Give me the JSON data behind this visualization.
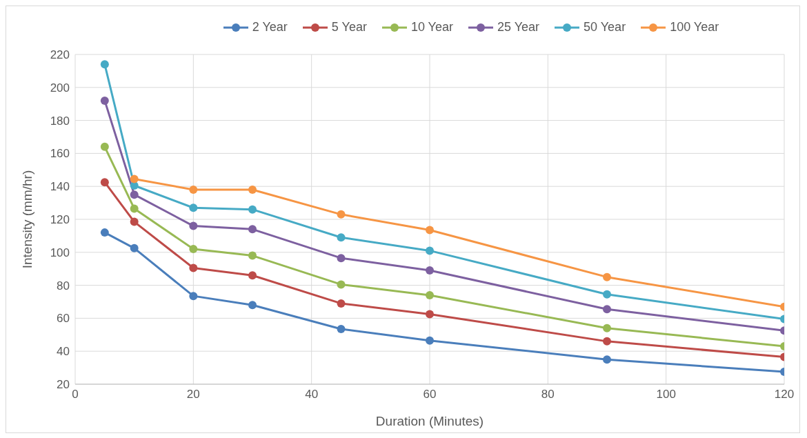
{
  "chart_data": {
    "type": "line",
    "xlabel": "Duration (Minutes)",
    "ylabel": "Intensity (mm/hr)",
    "x": [
      5,
      10,
      20,
      30,
      45,
      60,
      90,
      120
    ],
    "series": [
      {
        "name": "2 Year",
        "color": "#4a7ebb",
        "values": [
          112,
          102.5,
          73.5,
          68,
          53.5,
          46.5,
          35,
          27.5
        ]
      },
      {
        "name": "5 Year",
        "color": "#be4b48",
        "values": [
          142.5,
          118.5,
          90.5,
          86,
          69,
          62.5,
          46,
          36.5
        ]
      },
      {
        "name": "10 Year",
        "color": "#98b954",
        "values": [
          164,
          126.5,
          102,
          98,
          80.5,
          74,
          54,
          43
        ]
      },
      {
        "name": "25 Year",
        "color": "#7d60a0",
        "values": [
          192,
          135,
          116,
          114,
          96.5,
          89,
          65.5,
          52.5
        ]
      },
      {
        "name": "50 Year",
        "color": "#46aac5",
        "values": [
          214,
          140.5,
          127,
          126,
          109,
          101,
          74.5,
          59.5
        ]
      },
      {
        "name": "100 Year",
        "color": "#f69544",
        "values": [
          null,
          144.5,
          138,
          138,
          123,
          113.5,
          85,
          67
        ]
      }
    ],
    "xlim": [
      0,
      120
    ],
    "xticks": [
      0,
      20,
      40,
      60,
      80,
      100,
      120
    ],
    "ylim": [
      20,
      220
    ],
    "yticks": [
      20,
      40,
      60,
      80,
      100,
      120,
      140,
      160,
      180,
      200,
      220
    ],
    "grid": true,
    "legend": "top",
    "marker": "circle",
    "line_style": "solid"
  }
}
